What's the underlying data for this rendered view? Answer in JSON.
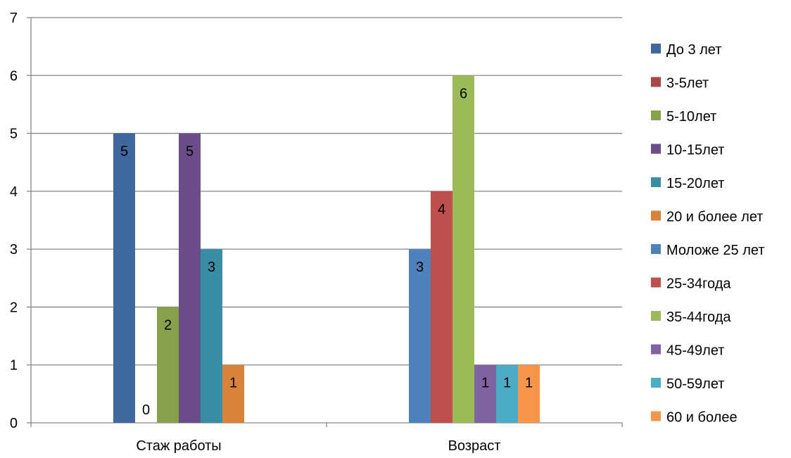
{
  "chart_data": {
    "type": "bar",
    "categories": [
      "Стаж работы",
      "Возраст"
    ],
    "ylim": [
      0,
      7
    ],
    "yticks": [
      0,
      1,
      2,
      3,
      4,
      5,
      6,
      7
    ],
    "grid": true,
    "legend_position": "right",
    "series": [
      {
        "name": "До 3 лет",
        "color": "#3F689D",
        "values": [
          5,
          null
        ]
      },
      {
        "name": "3-5лет",
        "color": "#A94845",
        "values": [
          0,
          null
        ]
      },
      {
        "name": "5-10лет",
        "color": "#87A14A",
        "values": [
          2,
          null
        ]
      },
      {
        "name": "10-15лет",
        "color": "#6B4E89",
        "values": [
          5,
          null
        ]
      },
      {
        "name": "15-20лет",
        "color": "#3A8EA3",
        "values": [
          3,
          null
        ]
      },
      {
        "name": "20 и более лет",
        "color": "#D8823A",
        "values": [
          1,
          null
        ]
      },
      {
        "name": "Моложе 25 лет",
        "color": "#4F81BD",
        "values": [
          null,
          3
        ]
      },
      {
        "name": "25-34года",
        "color": "#C0504D",
        "values": [
          null,
          4
        ]
      },
      {
        "name": "35-44года",
        "color": "#9BBB59",
        "values": [
          null,
          6
        ]
      },
      {
        "name": "45-49лет",
        "color": "#8064A2",
        "values": [
          null,
          1
        ]
      },
      {
        "name": "50-59лет",
        "color": "#4BACC6",
        "values": [
          null,
          1
        ]
      },
      {
        "name": "60 и более",
        "color": "#F79646",
        "values": [
          null,
          1
        ]
      }
    ]
  }
}
